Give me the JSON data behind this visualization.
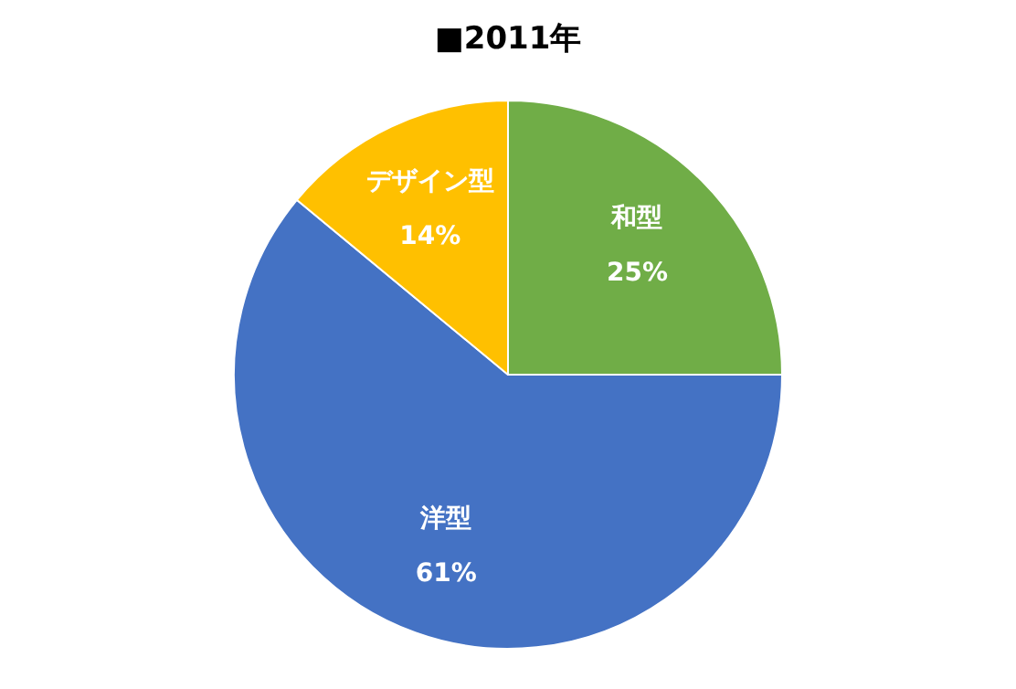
{
  "chart_data": {
    "type": "pie",
    "title": "■2011年",
    "categories": [
      "和型",
      "洋型",
      "デザイン型"
    ],
    "values": [
      25,
      61,
      14
    ],
    "value_labels": [
      "25%",
      "61%",
      "14%"
    ],
    "colors": [
      "#70ad47",
      "#4472c4",
      "#ffc000"
    ],
    "legend": false
  }
}
